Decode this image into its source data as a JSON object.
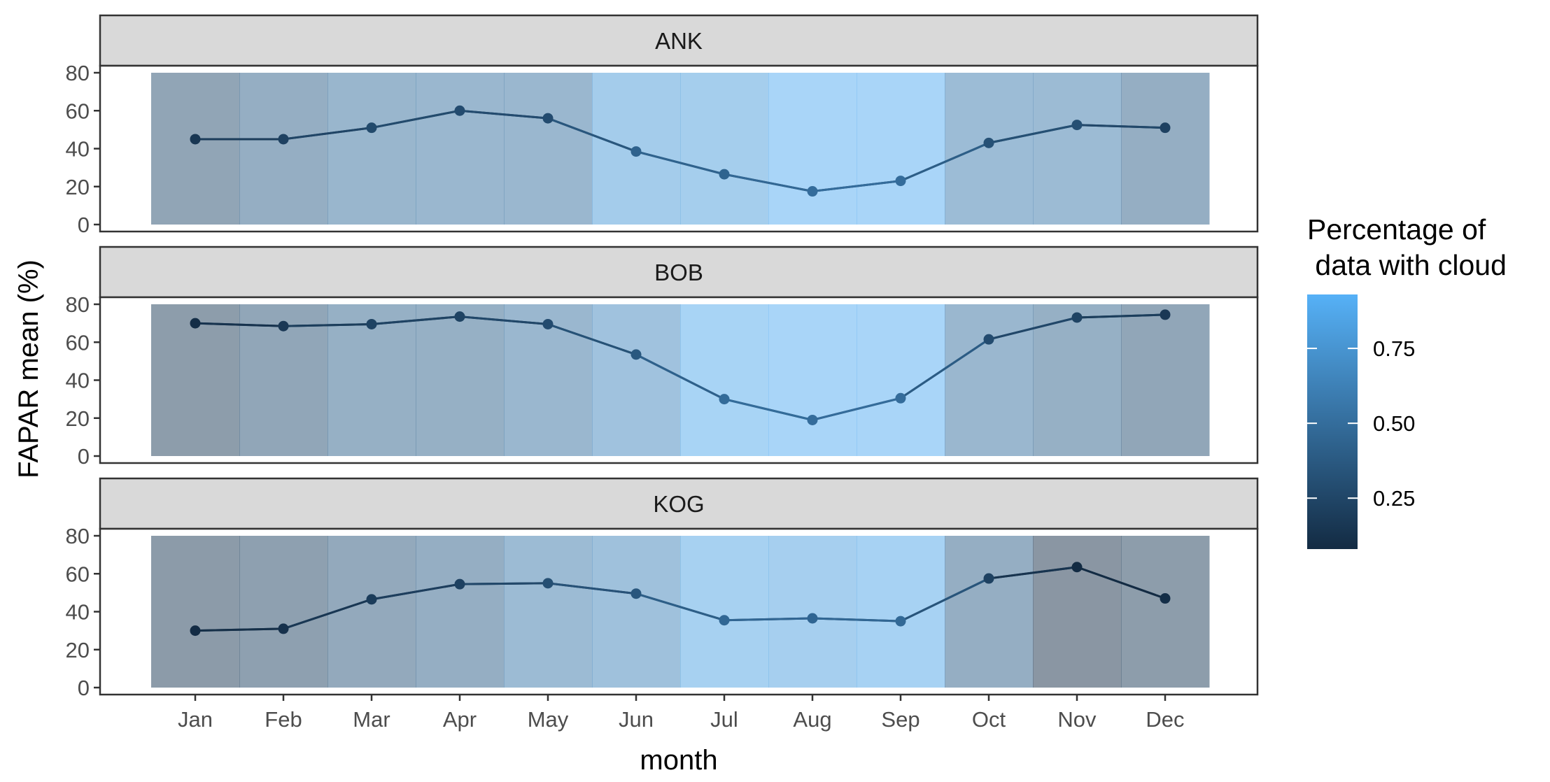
{
  "chart_data": {
    "type": "line",
    "ylabel": "FAPAR mean (%)",
    "xlabel": "month",
    "categories": [
      "Jan",
      "Feb",
      "Mar",
      "Apr",
      "May",
      "Jun",
      "Jul",
      "Aug",
      "Sep",
      "Oct",
      "Nov",
      "Dec"
    ],
    "ylim": [
      0,
      80
    ],
    "yticks": [
      0,
      20,
      40,
      60,
      80
    ],
    "panels": [
      {
        "name": "ANK",
        "values": [
          45,
          45,
          51,
          60,
          56,
          38.5,
          26.5,
          17.5,
          23,
          43,
          52.5,
          51
        ],
        "cloud": [
          0.28,
          0.4,
          0.5,
          0.52,
          0.52,
          0.78,
          0.8,
          0.9,
          0.9,
          0.58,
          0.56,
          0.4
        ]
      },
      {
        "name": "BOB",
        "values": [
          70,
          68.5,
          69.5,
          73.5,
          69.5,
          53.5,
          30,
          19,
          30.5,
          61.5,
          73,
          74.5
        ],
        "cloud": [
          0.18,
          0.3,
          0.42,
          0.42,
          0.52,
          0.66,
          0.88,
          0.9,
          0.9,
          0.52,
          0.42,
          0.3
        ]
      },
      {
        "name": "KOG",
        "values": [
          30,
          31,
          46.5,
          54.5,
          55,
          49.5,
          35.5,
          36.5,
          35,
          57.5,
          63.5,
          47
        ],
        "cloud": [
          0.16,
          0.22,
          0.34,
          0.4,
          0.56,
          0.64,
          0.84,
          0.82,
          0.86,
          0.4,
          0.1,
          0.18
        ]
      }
    ],
    "legend": {
      "title_line1": "Percentage of",
      "title_line2": " data with cloud",
      "ticks": [
        "0.25",
        "0.50",
        "0.75"
      ],
      "tick_values": [
        0.25,
        0.5,
        0.75
      ],
      "range": [
        0.08,
        0.93
      ],
      "color_low": "#132b43",
      "color_high": "#56b1f7",
      "placement": "right"
    },
    "grid": false,
    "strip_color": "#d9d9d9"
  }
}
